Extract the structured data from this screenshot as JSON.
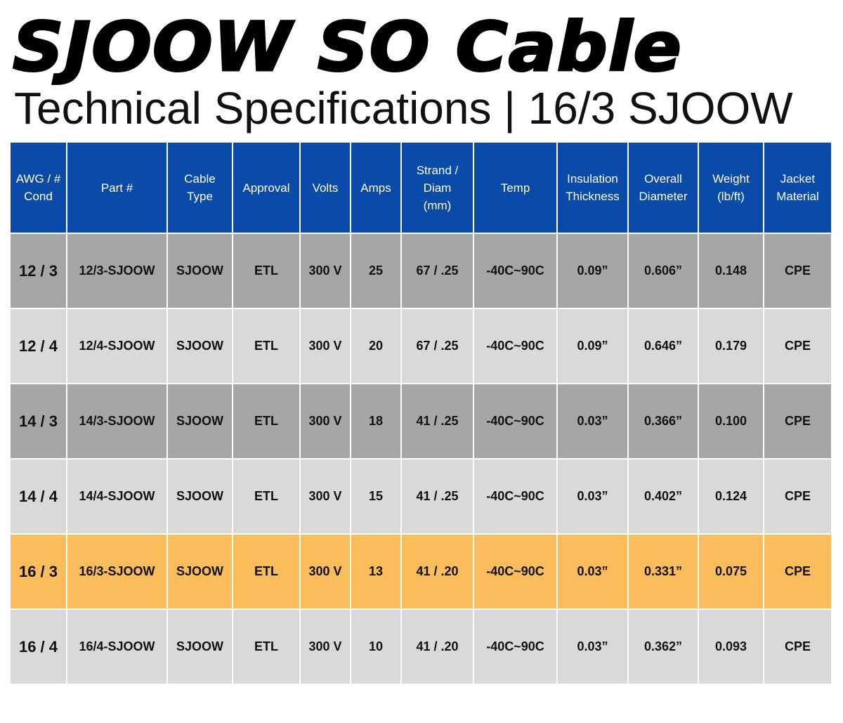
{
  "header": {
    "title": "SJOOW SO Cable",
    "subtitle": "Technical Specifications | 16/3 SJOOW"
  },
  "table": {
    "header_color": "#0a4aa8",
    "headers": [
      [
        "AWG / #",
        "Cond"
      ],
      [
        "Part #"
      ],
      [
        "Cable",
        "Type"
      ],
      [
        "Approval"
      ],
      [
        "Volts"
      ],
      [
        "Amps"
      ],
      [
        "Strand /",
        "Diam",
        "(mm)"
      ],
      [
        "Temp"
      ],
      [
        "Insulation",
        "Thickness"
      ],
      [
        "Overall",
        "Diameter"
      ],
      [
        "Weight",
        "(lb/ft)"
      ],
      [
        "Jacket",
        "Material"
      ]
    ],
    "rows": [
      {
        "color": "#a6a6a6",
        "cells": [
          "12 / 3",
          "12/3-SJOOW",
          "SJOOW",
          "ETL",
          "300 V",
          "25",
          "67 / .25",
          "-40C~90C",
          "0.09”",
          "0.606”",
          "0.148",
          "CPE"
        ]
      },
      {
        "color": "#d9d9d9",
        "cells": [
          "12 / 4",
          "12/4-SJOOW",
          "SJOOW",
          "ETL",
          "300 V",
          "20",
          "67 / .25",
          "-40C~90C",
          "0.09”",
          "0.646”",
          "0.179",
          "CPE"
        ]
      },
      {
        "color": "#a6a6a6",
        "cells": [
          "14 / 3",
          "14/3-SJOOW",
          "SJOOW",
          "ETL",
          "300 V",
          "18",
          "41 / .25",
          "-40C~90C",
          "0.03”",
          "0.366”",
          "0.100",
          "CPE"
        ]
      },
      {
        "color": "#d9d9d9",
        "cells": [
          "14 / 4",
          "14/4-SJOOW",
          "SJOOW",
          "ETL",
          "300 V",
          "15",
          "41 / .25",
          "-40C~90C",
          "0.03”",
          "0.402”",
          "0.124",
          "CPE"
        ]
      },
      {
        "color": "#fbbc5c",
        "cells": [
          "16 / 3",
          "16/3-SJOOW",
          "SJOOW",
          "ETL",
          "300 V",
          "13",
          "41 / .20",
          "-40C~90C",
          "0.03”",
          "0.331”",
          "0.075",
          "CPE"
        ]
      },
      {
        "color": "#d9d9d9",
        "cells": [
          "16 / 4",
          "16/4-SJOOW",
          "SJOOW",
          "ETL",
          "300 V",
          "10",
          "41 / .20",
          "-40C~90C",
          "0.03”",
          "0.362”",
          "0.093",
          "CPE"
        ]
      }
    ]
  }
}
